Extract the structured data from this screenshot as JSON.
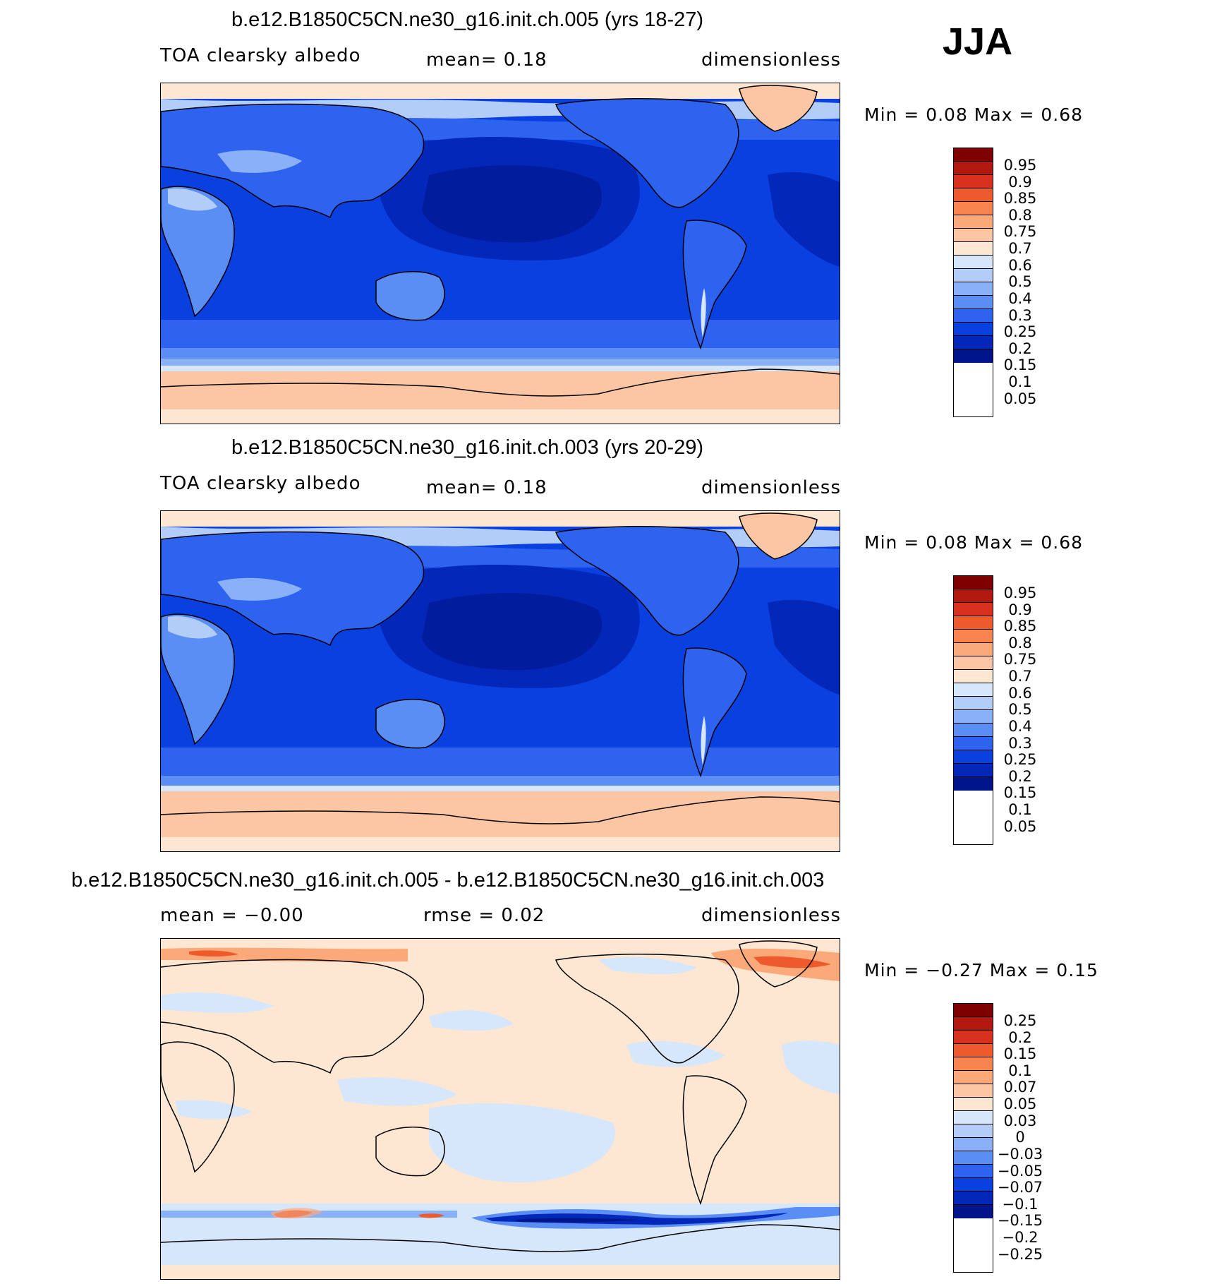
{
  "season": "JJA",
  "panels": [
    {
      "title": "b.e12.B1850C5CN.ne30_g16.init.ch.005 (yrs 18-27)",
      "variable": "TOA clearsky albedo",
      "stat": "mean=    0.18",
      "units": "dimensionless",
      "minmax": "Min =     0.08  Max =     0.68",
      "colorbar": {
        "labels": [
          "0.95",
          "0.9",
          "0.85",
          "0.8",
          "0.75",
          "0.7",
          "0.6",
          "0.5",
          "0.4",
          "0.3",
          "0.25",
          "0.2",
          "0.15",
          "0.1",
          "0.05"
        ],
        "colors": [
          "#7f0000",
          "#b2180e",
          "#d7301f",
          "#ef5a2d",
          "#f8854f",
          "#fca97a",
          "#fcc6a5",
          "#fde6d2",
          "#d6e6fb",
          "#b3cdf9",
          "#8ab0f7",
          "#5a8ef5",
          "#2e63ef",
          "#0a3fe0",
          "#0327b8",
          "#00158a"
        ]
      },
      "chart_data": {
        "type": "map",
        "projection": "cylindrical equidistant, centered on 180°",
        "field": "TOA clearsky albedo",
        "mean": 0.18,
        "min": 0.08,
        "max": 0.68,
        "units": "dimensionless",
        "contour_levels": [
          0.05,
          0.1,
          0.15,
          0.2,
          0.25,
          0.3,
          0.4,
          0.5,
          0.6,
          0.7,
          0.75,
          0.8,
          0.85,
          0.9,
          0.95
        ]
      }
    },
    {
      "title": "b.e12.B1850C5CN.ne30_g16.init.ch.003 (yrs 20-29)",
      "variable": "TOA clearsky albedo",
      "stat": "mean=    0.18",
      "units": "dimensionless",
      "minmax": "Min =     0.08  Max =     0.68",
      "colorbar": {
        "labels": [
          "0.95",
          "0.9",
          "0.85",
          "0.8",
          "0.75",
          "0.7",
          "0.6",
          "0.5",
          "0.4",
          "0.3",
          "0.25",
          "0.2",
          "0.15",
          "0.1",
          "0.05"
        ],
        "colors": [
          "#7f0000",
          "#b2180e",
          "#d7301f",
          "#ef5a2d",
          "#f8854f",
          "#fca97a",
          "#fcc6a5",
          "#fde6d2",
          "#d6e6fb",
          "#b3cdf9",
          "#8ab0f7",
          "#5a8ef5",
          "#2e63ef",
          "#0a3fe0",
          "#0327b8",
          "#00158a"
        ]
      },
      "chart_data": {
        "type": "map",
        "projection": "cylindrical equidistant, centered on 180°",
        "field": "TOA clearsky albedo",
        "mean": 0.18,
        "min": 0.08,
        "max": 0.68,
        "units": "dimensionless",
        "contour_levels": [
          0.05,
          0.1,
          0.15,
          0.2,
          0.25,
          0.3,
          0.4,
          0.5,
          0.6,
          0.7,
          0.75,
          0.8,
          0.85,
          0.9,
          0.95
        ]
      }
    },
    {
      "title": "b.e12.B1850C5CN.ne30_g16.init.ch.005 - b.e12.B1850C5CN.ne30_g16.init.ch.003",
      "variable": "mean =   −0.00",
      "stat": "rmse =    0.02",
      "units": "dimensionless",
      "minmax": "Min =   −0.27  Max =     0.15",
      "colorbar": {
        "labels": [
          "0.25",
          "0.2",
          "0.15",
          "0.1",
          "0.07",
          "0.05",
          "0.03",
          "0",
          "−0.03",
          "−0.05",
          "−0.07",
          "−0.1",
          "−0.15",
          "−0.2",
          "−0.25"
        ],
        "colors": [
          "#7f0000",
          "#b2180e",
          "#d7301f",
          "#ef5a2d",
          "#f8854f",
          "#fca97a",
          "#fcc6a5",
          "#fde6d2",
          "#d6e6fb",
          "#b3cdf9",
          "#8ab0f7",
          "#5a8ef5",
          "#2e63ef",
          "#0a3fe0",
          "#0327b8",
          "#00158a"
        ]
      },
      "chart_data": {
        "type": "map",
        "projection": "cylindrical equidistant, centered on 180°",
        "field": "difference of TOA clearsky albedo",
        "mean": -0.0,
        "rmse": 0.02,
        "min": -0.27,
        "max": 0.15,
        "units": "dimensionless",
        "contour_levels": [
          -0.25,
          -0.2,
          -0.15,
          -0.1,
          -0.07,
          -0.05,
          -0.03,
          0,
          0.03,
          0.05,
          0.07,
          0.1,
          0.15,
          0.2,
          0.25
        ]
      }
    }
  ]
}
